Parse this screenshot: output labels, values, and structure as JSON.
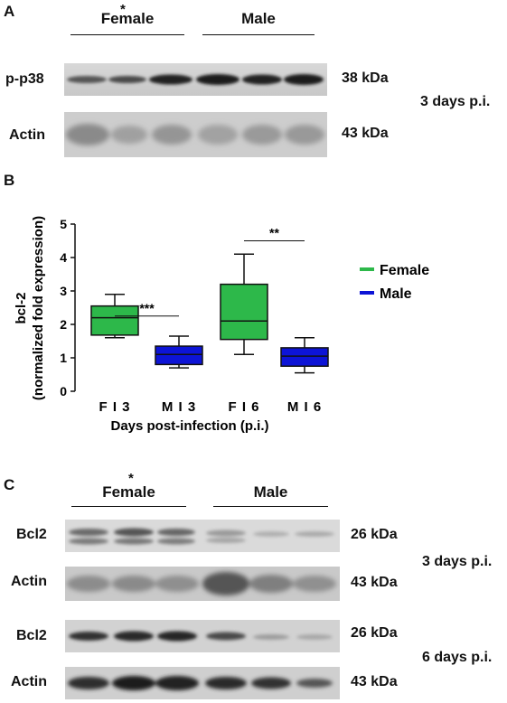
{
  "panel_a": {
    "letter": "A",
    "asterisk": "*",
    "group_female": "Female",
    "group_male": "Male",
    "row1_label": "p-p38",
    "row1_kda": "38 kDa",
    "row2_label": "Actin",
    "row2_kda": "43 kDa",
    "time_label": "3 days p.i."
  },
  "panel_b": {
    "letter": "B"
  },
  "chart_data": {
    "type": "boxplot",
    "ylabel_line1": "bcl-2",
    "ylabel_line2": "(normalized fold expression)",
    "xlabel": "Days post-infection (p.i.)",
    "ylim": [
      0,
      5
    ],
    "yticks": [
      "0",
      "1",
      "2",
      "3",
      "4",
      "5"
    ],
    "categories": [
      "F I 3",
      "M I 3",
      "F I 6",
      "M I 6"
    ],
    "boxes": [
      {
        "min": 1.6,
        "q1": 1.68,
        "median": 2.2,
        "q3": 2.55,
        "max": 2.9,
        "color": "#2db84a"
      },
      {
        "min": 0.7,
        "q1": 0.8,
        "median": 1.1,
        "q3": 1.35,
        "max": 1.65,
        "color": "#0d14d6"
      },
      {
        "min": 1.1,
        "q1": 1.55,
        "median": 2.1,
        "q3": 3.2,
        "max": 4.1,
        "color": "#2db84a"
      },
      {
        "min": 0.55,
        "q1": 0.75,
        "median": 1.05,
        "q3": 1.3,
        "max": 1.6,
        "color": "#0d14d6"
      }
    ],
    "significance": [
      {
        "label": "***",
        "y": 2.25
      },
      {
        "label": "**",
        "y": 4.5
      }
    ],
    "legend": [
      {
        "name": "Female",
        "color": "#2db84a"
      },
      {
        "name": "Male",
        "color": "#0d14d6"
      }
    ]
  },
  "panel_c": {
    "letter": "C",
    "asterisk": "*",
    "group_female": "Female",
    "group_male": "Male",
    "row1_label": "Bcl2",
    "row1_kda": "26 kDa",
    "row2_label": "Actin",
    "row2_kda": "43 kDa",
    "row3_label": "Bcl2",
    "row3_kda": "26 kDa",
    "row4_label": "Actin",
    "row4_kda": "43 kDa",
    "time3_label": "3 days p.i.",
    "time6_label": "6 days p.i."
  }
}
